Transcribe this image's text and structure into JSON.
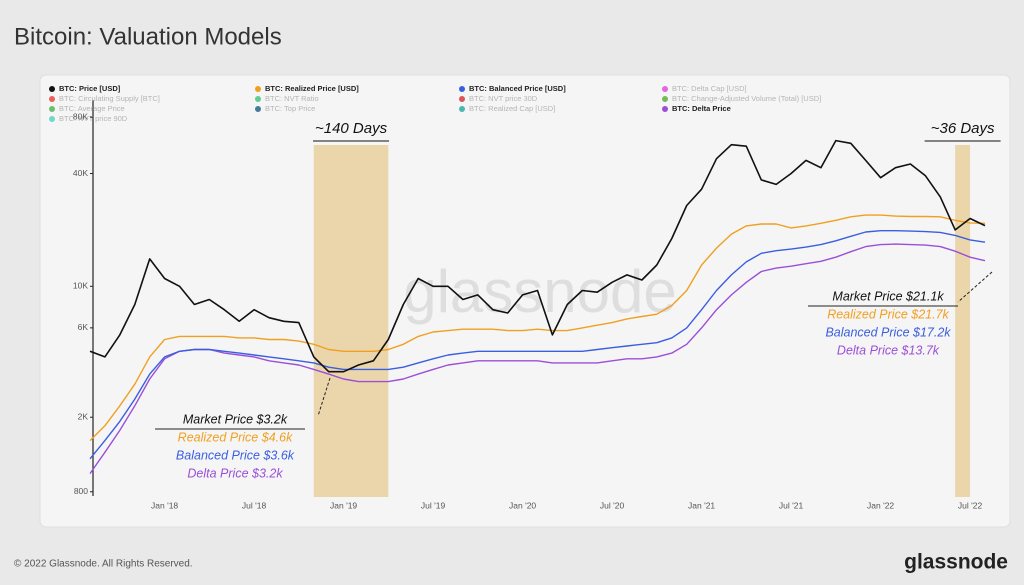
{
  "chart_data": {
    "type": "line",
    "title": "Bitcoin: Valuation Models",
    "log_scale": true,
    "grid": false,
    "x": [
      "2017-08",
      "2017-09",
      "2017-10",
      "2017-11",
      "2017-12",
      "2018-01",
      "2018-02",
      "2018-03",
      "2018-04",
      "2018-05",
      "2018-06",
      "2018-07",
      "2018-08",
      "2018-09",
      "2018-10",
      "2018-11",
      "2018-12",
      "2019-01",
      "2019-02",
      "2019-03",
      "2019-04",
      "2019-05",
      "2019-06",
      "2019-07",
      "2019-08",
      "2019-09",
      "2019-10",
      "2019-11",
      "2019-12",
      "2020-01",
      "2020-02",
      "2020-03",
      "2020-04",
      "2020-05",
      "2020-06",
      "2020-07",
      "2020-08",
      "2020-09",
      "2020-10",
      "2020-11",
      "2020-12",
      "2021-01",
      "2021-02",
      "2021-03",
      "2021-04",
      "2021-05",
      "2021-06",
      "2021-07",
      "2021-08",
      "2021-09",
      "2021-10",
      "2021-11",
      "2021-12",
      "2022-01",
      "2022-02",
      "2022-03",
      "2022-04",
      "2022-05",
      "2022-06",
      "2022-07",
      "2022-08"
    ],
    "xlim": [
      "2017-08",
      "2022-08"
    ],
    "xticks": [
      {
        "value": "2018-01",
        "label": "Jan '18"
      },
      {
        "value": "2018-07",
        "label": "Jul '18"
      },
      {
        "value": "2019-01",
        "label": "Jan '19"
      },
      {
        "value": "2019-07",
        "label": "Jul '19"
      },
      {
        "value": "2020-01",
        "label": "Jan '20"
      },
      {
        "value": "2020-07",
        "label": "Jul '20"
      },
      {
        "value": "2021-01",
        "label": "Jan '21"
      },
      {
        "value": "2021-07",
        "label": "Jul '21"
      },
      {
        "value": "2022-01",
        "label": "Jan '22"
      },
      {
        "value": "2022-07",
        "label": "Jul '22"
      }
    ],
    "ylim": [
      750,
      100000
    ],
    "yticks": [
      800,
      {
        "value": 2000,
        "label": "2K"
      },
      {
        "value": 6000,
        "label": "6K"
      },
      {
        "value": 10000,
        "label": "10K"
      },
      {
        "value": 40000,
        "label": "40K"
      },
      {
        "value": 80000,
        "label": "80K"
      }
    ],
    "series": [
      {
        "name": "BTC: Price [USD]",
        "color": "#111111",
        "values": [
          4500,
          4200,
          5500,
          8000,
          14000,
          11000,
          10000,
          8000,
          8500,
          7500,
          6500,
          7500,
          6800,
          6500,
          6400,
          4200,
          3500,
          3500,
          3800,
          4000,
          5200,
          8000,
          11000,
          10000,
          10000,
          8500,
          9000,
          7500,
          7200,
          9000,
          9500,
          5500,
          8000,
          9500,
          9300,
          10500,
          11500,
          10800,
          13000,
          18000,
          27000,
          33000,
          48000,
          57000,
          56000,
          37000,
          35000,
          40000,
          47000,
          43000,
          60000,
          58000,
          47000,
          38000,
          43000,
          45000,
          39000,
          30000,
          20000,
          23000,
          21100
        ]
      },
      {
        "name": "BTC: Realized Price [USD]",
        "color": "#f0a020",
        "values": [
          1500,
          1800,
          2300,
          3000,
          4200,
          5200,
          5400,
          5400,
          5400,
          5400,
          5300,
          5300,
          5200,
          5200,
          5100,
          4900,
          4600,
          4500,
          4500,
          4500,
          4600,
          4900,
          5400,
          5700,
          5800,
          5900,
          5900,
          5900,
          5800,
          5800,
          5900,
          5800,
          5800,
          6000,
          6200,
          6400,
          6700,
          6900,
          7100,
          7900,
          9500,
          13000,
          16000,
          19000,
          21000,
          21500,
          21500,
          20500,
          21000,
          21700,
          22500,
          23500,
          24000,
          24000,
          23700,
          23600,
          23600,
          23500,
          22500,
          21800,
          21700
        ]
      },
      {
        "name": "BTC: Balanced Price [USD]",
        "color": "#3a5ee0",
        "values": [
          1200,
          1500,
          1900,
          2500,
          3400,
          4200,
          4500,
          4600,
          4600,
          4500,
          4400,
          4300,
          4200,
          4100,
          4000,
          3900,
          3700,
          3600,
          3600,
          3600,
          3600,
          3700,
          3900,
          4100,
          4300,
          4400,
          4500,
          4500,
          4500,
          4500,
          4500,
          4500,
          4500,
          4500,
          4600,
          4700,
          4800,
          4900,
          5000,
          5300,
          6000,
          7500,
          9500,
          11500,
          13500,
          15000,
          15500,
          15800,
          16200,
          16700,
          17500,
          18500,
          19500,
          19800,
          19800,
          19700,
          19600,
          19400,
          18700,
          17700,
          17200
        ]
      },
      {
        "name": "BTC: Delta Price",
        "color": "#9b4fd8",
        "values": [
          1000,
          1300,
          1700,
          2300,
          3200,
          4100,
          4500,
          4600,
          4600,
          4400,
          4300,
          4200,
          4000,
          3900,
          3800,
          3600,
          3400,
          3200,
          3100,
          3100,
          3100,
          3200,
          3400,
          3600,
          3800,
          3900,
          4000,
          4000,
          4000,
          4000,
          4000,
          3900,
          3900,
          3900,
          3900,
          4000,
          4100,
          4100,
          4200,
          4400,
          4900,
          6000,
          7500,
          9000,
          10500,
          12000,
          12500,
          12800,
          13200,
          13600,
          14300,
          15300,
          16300,
          16700,
          16800,
          16700,
          16600,
          16300,
          15400,
          14300,
          13700
        ]
      }
    ],
    "other_indicators": [
      {
        "name": "BTC: Delta Cap [USD]",
        "color": "#e040e0"
      },
      {
        "name": "BTC: Circulating Supply [BTC]",
        "color": "#e53935"
      },
      {
        "name": "BTC: NVT Ratio",
        "color": "#3cc37a"
      },
      {
        "name": "BTC: NVT price 30D",
        "color": "#d32f2f"
      },
      {
        "name": "BTC: Change-Adjusted Volume (Total) [USD]",
        "color": "#55aa33"
      },
      {
        "name": "BTC: Average Price",
        "color": "#4caf50"
      },
      {
        "name": "BTC: Top Price",
        "color": "#1b5e80"
      },
      {
        "name": "BTC: Realized Cap [USD]",
        "color": "#26a69a"
      },
      {
        "name": "BTC: NVT price 90D",
        "color": "#4dd0c0"
      }
    ],
    "bands": [
      {
        "label": "~140 Days",
        "start": "2018-11",
        "end": "2019-03",
        "color": "#e2bb6e"
      },
      {
        "label": "~36 Days",
        "start": "2022-06",
        "end": "2022-06",
        "color": "#e2bb6e"
      }
    ],
    "annotations": [
      {
        "lines": [
          "Market Price $3.2k",
          "Realized Price $4.6k",
          "Balanced Price $3.6k",
          "Delta Price $3.2k"
        ]
      },
      {
        "lines": [
          "Market Price $21.1k",
          "Realized Price $21.7k",
          "Balanced Price $17.2k",
          "Delta Price $13.7k"
        ]
      }
    ],
    "watermark": "glassnode",
    "footer": "© 2022 Glassnode. All Rights Reserved.",
    "brand": "glassnode"
  }
}
